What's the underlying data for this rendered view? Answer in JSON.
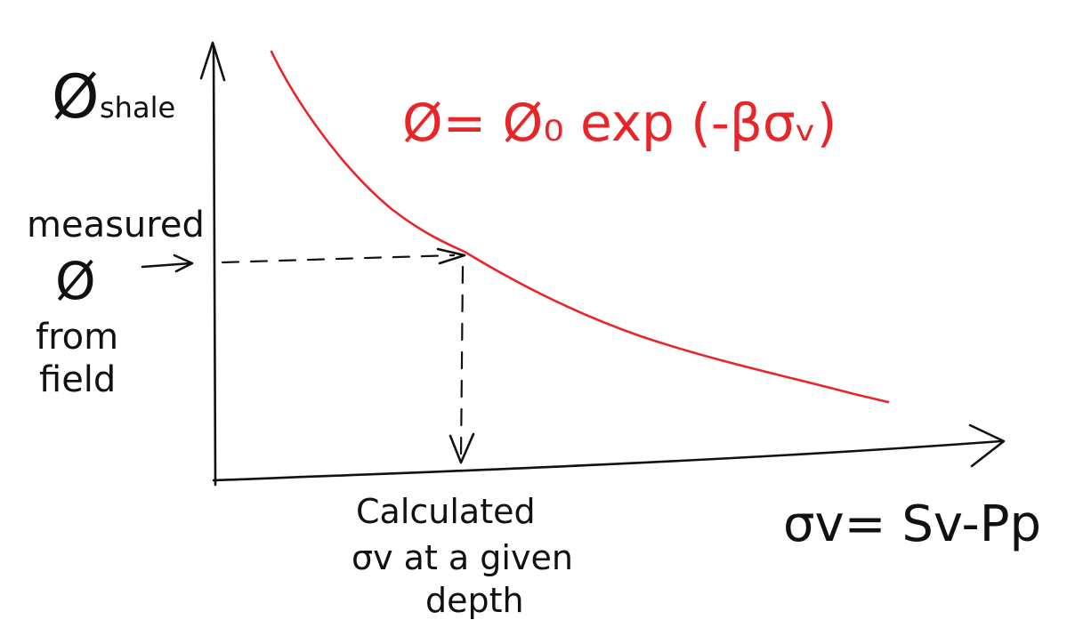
{
  "y_axis": {
    "symbol": "Ø",
    "subscript": "shale"
  },
  "equation": "Ø= Ø₀ exp (-βσᵥ)",
  "measured_label": {
    "line1": "measured",
    "symbol": "Ø",
    "line3": "from",
    "line4": "field"
  },
  "calculated_label": {
    "line1": "Calculated",
    "line2": "σv at a given",
    "line3": "depth"
  },
  "x_axis": {
    "label": "σv= Sv-Pp"
  },
  "colors": {
    "ink": "#111111",
    "curve": "#e8262a"
  }
}
